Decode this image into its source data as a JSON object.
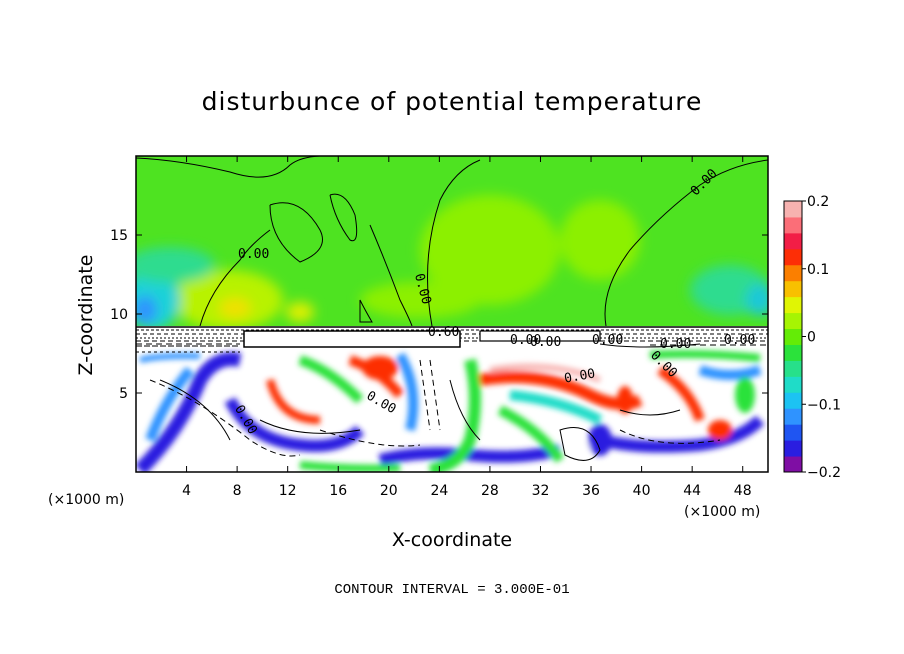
{
  "chart_data": {
    "type": "heatmap",
    "title": "disturbunce of potential temperature",
    "xlabel": "X-coordinate",
    "ylabel": "Z-coordinate",
    "x_unit": "(×1000 m)",
    "x_unit_right": "(×1000 m)",
    "xlim": [
      0,
      50
    ],
    "ylim": [
      0,
      20
    ],
    "x_ticks": [
      "4",
      "8",
      "12",
      "16",
      "20",
      "24",
      "28",
      "32",
      "36",
      "40",
      "44",
      "48"
    ],
    "y_ticks": [
      "5",
      "10",
      "15"
    ],
    "colorbar": {
      "range": [
        -0.2,
        0.2
      ],
      "tick_labels": [
        "0.2",
        "0.1",
        "0",
        "−0.1",
        "−0.2"
      ],
      "colors": [
        "#7f0ea4",
        "#2a1ee0",
        "#1f55f2",
        "#2f93ff",
        "#1cc3f3",
        "#1fdcc8",
        "#27e08a",
        "#2be23b",
        "#64ec06",
        "#a6f403",
        "#e0f504",
        "#f8c000",
        "#fb7f00",
        "#fd2e06",
        "#f21e46",
        "#fb6e78",
        "#f7b2b0"
      ]
    },
    "contour_labels": [
      "0.00",
      "0.00",
      "0.00",
      "0.00",
      "0.60",
      "0.00",
      "0.00",
      "0.00",
      "0.00",
      "0.00",
      "0.00",
      "0.00",
      "0.00"
    ],
    "footer": "CONTOUR INTERVAL = 3.000E-01"
  }
}
